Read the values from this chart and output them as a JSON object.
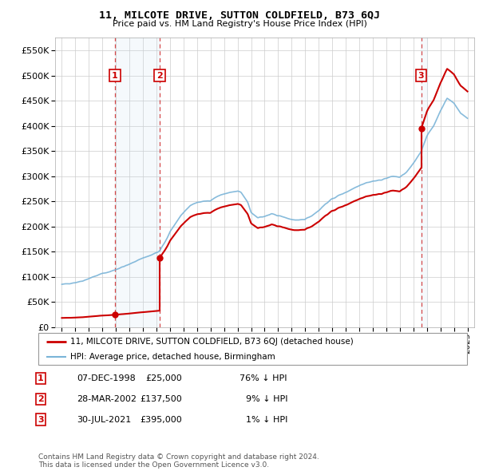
{
  "title": "11, MILCOTE DRIVE, SUTTON COLDFIELD, B73 6QJ",
  "subtitle": "Price paid vs. HM Land Registry's House Price Index (HPI)",
  "transactions": [
    {
      "label": "1",
      "date_str": "07-DEC-1998",
      "date_num": 1998.92,
      "price": 25000
    },
    {
      "label": "2",
      "date_str": "28-MAR-2002",
      "date_num": 2002.24,
      "price": 137500
    },
    {
      "label": "3",
      "date_str": "30-JUL-2021",
      "date_num": 2021.58,
      "price": 395000
    }
  ],
  "hpi_color": "#7ab4d8",
  "price_color": "#cc0000",
  "dashed_color": "#cc0000",
  "highlight_color": "#c8dff0",
  "label_box_color": "#cc0000",
  "ylim": [
    0,
    575000
  ],
  "yticks": [
    0,
    50000,
    100000,
    150000,
    200000,
    250000,
    300000,
    350000,
    400000,
    450000,
    500000,
    550000
  ],
  "xlim_start": 1994.5,
  "xlim_end": 2025.5,
  "footer": "Contains HM Land Registry data © Crown copyright and database right 2024.\nThis data is licensed under the Open Government Licence v3.0.",
  "legend_line1": "11, MILCOTE DRIVE, SUTTON COLDFIELD, B73 6QJ (detached house)",
  "legend_line2": "HPI: Average price, detached house, Birmingham",
  "table_rows": [
    [
      "1",
      "07-DEC-1998",
      "£25,000",
      "76% ↓ HPI"
    ],
    [
      "2",
      "28-MAR-2002",
      "£137,500",
      "9% ↓ HPI"
    ],
    [
      "3",
      "30-JUL-2021",
      "£395,000",
      "1% ↓ HPI"
    ]
  ]
}
